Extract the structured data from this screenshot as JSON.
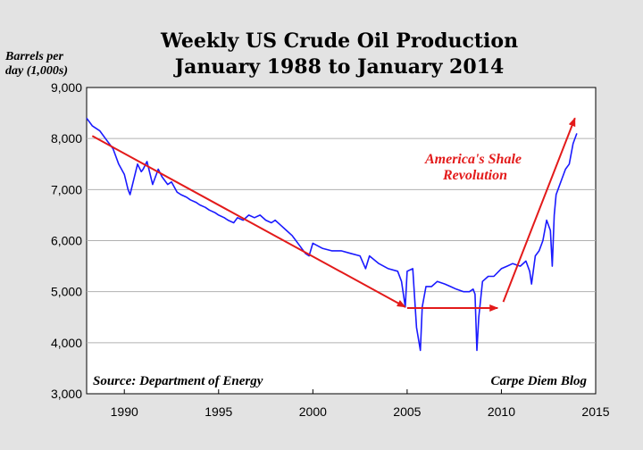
{
  "chart_data": {
    "type": "line",
    "title": [
      "Weekly US Crude Oil Production",
      "January 1988 to January 2014"
    ],
    "ylabel": [
      "Barrels per",
      "day (1,000s)"
    ],
    "xlim": [
      1988,
      2015
    ],
    "ylim": [
      3000,
      9000
    ],
    "yticks": [
      3000,
      4000,
      5000,
      6000,
      7000,
      8000,
      9000
    ],
    "ytick_labels": [
      "3,000",
      "4,000",
      "5,000",
      "6,000",
      "7,000",
      "8,000",
      "9,000"
    ],
    "xticks": [
      1990,
      1995,
      2000,
      2005,
      2010,
      2015
    ],
    "xtick_labels": [
      "1990",
      "1995",
      "2000",
      "2005",
      "2010",
      "2015"
    ],
    "grid": true,
    "series": [
      {
        "color": "#1a1aff",
        "x": [
          1988.0,
          1988.3,
          1988.7,
          1989.0,
          1989.4,
          1989.7,
          1990.0,
          1990.2,
          1990.3,
          1990.5,
          1990.7,
          1990.9,
          1991.0,
          1991.2,
          1991.5,
          1991.8,
          1992.0,
          1992.3,
          1992.5,
          1992.8,
          1993.0,
          1993.3,
          1993.5,
          1993.8,
          1994.0,
          1994.3,
          1994.5,
          1994.8,
          1995.0,
          1995.3,
          1995.5,
          1995.8,
          1996.0,
          1996.3,
          1996.6,
          1996.9,
          1997.2,
          1997.5,
          1997.8,
          1998.0,
          1998.3,
          1998.6,
          1998.9,
          1999.0,
          1999.3,
          1999.6,
          1999.8,
          2000.0,
          2000.5,
          2001.0,
          2001.5,
          2002.0,
          2002.5,
          2002.8,
          2003.0,
          2003.5,
          2004.0,
          2004.5,
          2004.7,
          2004.9,
          2005.0,
          2005.3,
          2005.5,
          2005.7,
          2005.8,
          2006.0,
          2006.3,
          2006.6,
          2007.0,
          2007.3,
          2007.6,
          2008.0,
          2008.3,
          2008.5,
          2008.6,
          2008.7,
          2008.8,
          2009.0,
          2009.3,
          2009.6,
          2010.0,
          2010.3,
          2010.6,
          2011.0,
          2011.3,
          2011.5,
          2011.6,
          2011.8,
          2012.0,
          2012.2,
          2012.4,
          2012.6,
          2012.7,
          2012.8,
          2012.9,
          2013.0,
          2013.2,
          2013.4,
          2013.6,
          2013.8,
          2014.0
        ],
        "y": [
          8400,
          8250,
          8150,
          8000,
          7800,
          7500,
          7300,
          7000,
          6900,
          7200,
          7500,
          7350,
          7400,
          7550,
          7100,
          7400,
          7250,
          7100,
          7150,
          6950,
          6900,
          6850,
          6800,
          6750,
          6700,
          6650,
          6600,
          6550,
          6500,
          6450,
          6400,
          6350,
          6450,
          6400,
          6500,
          6450,
          6500,
          6400,
          6350,
          6400,
          6300,
          6200,
          6100,
          6050,
          5900,
          5750,
          5700,
          5950,
          5850,
          5800,
          5800,
          5750,
          5700,
          5450,
          5700,
          5550,
          5450,
          5400,
          5200,
          4700,
          5400,
          5450,
          4300,
          3850,
          4700,
          5100,
          5100,
          5200,
          5150,
          5100,
          5050,
          5000,
          5000,
          5050,
          4950,
          3850,
          4500,
          5200,
          5300,
          5300,
          5450,
          5500,
          5550,
          5500,
          5600,
          5400,
          5150,
          5700,
          5800,
          6000,
          6400,
          6200,
          5500,
          6500,
          6900,
          7000,
          7200,
          7400,
          7500,
          7900,
          8100
        ]
      }
    ],
    "annotations": [
      {
        "text": [
          "America's Shale",
          "Revolution"
        ],
        "color": "#e31a1a"
      }
    ],
    "arrows": [
      {
        "from": [
          1988.3,
          8050
        ],
        "to": [
          2004.9,
          4700
        ],
        "color": "#e31a1a"
      },
      {
        "from": [
          2005.0,
          4680
        ],
        "to": [
          2009.8,
          4680
        ],
        "color": "#e31a1a"
      },
      {
        "from": [
          2010.1,
          4800
        ],
        "to": [
          2013.9,
          8400
        ],
        "color": "#e31a1a"
      }
    ],
    "footnotes": {
      "left": "Source: Department of Energy",
      "right": "Carpe Diem Blog"
    }
  }
}
